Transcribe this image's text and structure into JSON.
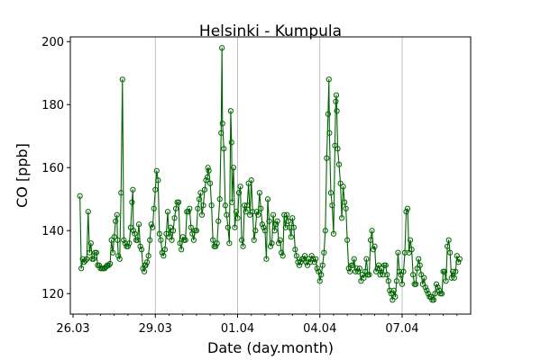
{
  "chart_data": {
    "type": "line",
    "title": "Helsinki - Kumpula",
    "xlabel": "Date (day.month)",
    "ylabel": "CO [ppb]",
    "x_unit": "days since 26.03 00:00",
    "xlim": [
      -0.1,
      14.5
    ],
    "ylim": [
      113.5,
      201.5
    ],
    "x_ticks": [
      {
        "value": 0,
        "label": "26.03"
      },
      {
        "value": 3,
        "label": "29.03"
      },
      {
        "value": 6,
        "label": "01.04"
      },
      {
        "value": 9,
        "label": "04.04"
      },
      {
        "value": 12,
        "label": "07.04"
      }
    ],
    "y_ticks": [
      120,
      140,
      160,
      180,
      200
    ],
    "vertical_gridlines_at": [
      3,
      6,
      9,
      12
    ],
    "colors": {
      "series": "#006400"
    },
    "series": [
      {
        "name": "CO",
        "marker": "hollow-circle",
        "points": [
          [
            0.25,
            151
          ],
          [
            0.3,
            128
          ],
          [
            0.35,
            131
          ],
          [
            0.4,
            130
          ],
          [
            0.45,
            130.5
          ],
          [
            0.5,
            131
          ],
          [
            0.55,
            146
          ],
          [
            0.6,
            133
          ],
          [
            0.65,
            136
          ],
          [
            0.7,
            131
          ],
          [
            0.75,
            131
          ],
          [
            0.8,
            133
          ],
          [
            0.85,
            133
          ],
          [
            0.9,
            129
          ],
          [
            0.95,
            129
          ],
          [
            1.0,
            128
          ],
          [
            1.05,
            128
          ],
          [
            1.1,
            128
          ],
          [
            1.15,
            128
          ],
          [
            1.2,
            128.5
          ],
          [
            1.25,
            129
          ],
          [
            1.3,
            129
          ],
          [
            1.35,
            129.5
          ],
          [
            1.4,
            137
          ],
          [
            1.45,
            133
          ],
          [
            1.5,
            138
          ],
          [
            1.55,
            143
          ],
          [
            1.6,
            145
          ],
          [
            1.62,
            137
          ],
          [
            1.65,
            132
          ],
          [
            1.7,
            131
          ],
          [
            1.75,
            152
          ],
          [
            1.8,
            188
          ],
          [
            1.85,
            137
          ],
          [
            1.9,
            136
          ],
          [
            1.95,
            135
          ],
          [
            2.0,
            135
          ],
          [
            2.05,
            136
          ],
          [
            2.1,
            141
          ],
          [
            2.15,
            149
          ],
          [
            2.18,
            153
          ],
          [
            2.2,
            140
          ],
          [
            2.25,
            139
          ],
          [
            2.3,
            137
          ],
          [
            2.35,
            137
          ],
          [
            2.4,
            142
          ],
          [
            2.45,
            135
          ],
          [
            2.5,
            134
          ],
          [
            2.55,
            128
          ],
          [
            2.6,
            127
          ],
          [
            2.62,
            129
          ],
          [
            2.65,
            129
          ],
          [
            2.7,
            130
          ],
          [
            2.75,
            132
          ],
          [
            2.8,
            137
          ],
          [
            2.85,
            142
          ],
          [
            2.9,
            141
          ],
          [
            2.95,
            147
          ],
          [
            3.0,
            153
          ],
          [
            3.05,
            159
          ],
          [
            3.1,
            156
          ],
          [
            3.15,
            139
          ],
          [
            3.2,
            137
          ],
          [
            3.25,
            133
          ],
          [
            3.3,
            132
          ],
          [
            3.35,
            134
          ],
          [
            3.4,
            139
          ],
          [
            3.45,
            146
          ],
          [
            3.5,
            138
          ],
          [
            3.55,
            141
          ],
          [
            3.6,
            137
          ],
          [
            3.65,
            140
          ],
          [
            3.7,
            144
          ],
          [
            3.75,
            147
          ],
          [
            3.8,
            149
          ],
          [
            3.85,
            149
          ],
          [
            3.9,
            136
          ],
          [
            3.95,
            134
          ],
          [
            4.0,
            138
          ],
          [
            4.05,
            137
          ],
          [
            4.1,
            137
          ],
          [
            4.15,
            146
          ],
          [
            4.2,
            146
          ],
          [
            4.25,
            147
          ],
          [
            4.3,
            141
          ],
          [
            4.35,
            139
          ],
          [
            4.4,
            137
          ],
          [
            4.45,
            140
          ],
          [
            4.5,
            140
          ],
          [
            4.55,
            147
          ],
          [
            4.6,
            150
          ],
          [
            4.65,
            152
          ],
          [
            4.7,
            145
          ],
          [
            4.75,
            148
          ],
          [
            4.8,
            153
          ],
          [
            4.85,
            156
          ],
          [
            4.9,
            157
          ],
          [
            4.92,
            160
          ],
          [
            4.95,
            159
          ],
          [
            5.0,
            155
          ],
          [
            5.05,
            148
          ],
          [
            5.1,
            137
          ],
          [
            5.15,
            135
          ],
          [
            5.2,
            135
          ],
          [
            5.25,
            136
          ],
          [
            5.3,
            143
          ],
          [
            5.35,
            150
          ],
          [
            5.4,
            171
          ],
          [
            5.43,
            198
          ],
          [
            5.45,
            174
          ],
          [
            5.5,
            166
          ],
          [
            5.55,
            148
          ],
          [
            5.6,
            145
          ],
          [
            5.65,
            141
          ],
          [
            5.7,
            136
          ],
          [
            5.75,
            178
          ],
          [
            5.78,
            168
          ],
          [
            5.8,
            149
          ],
          [
            5.85,
            160
          ],
          [
            5.9,
            141
          ],
          [
            5.95,
            146
          ],
          [
            6.0,
            144
          ],
          [
            6.05,
            152
          ],
          [
            6.1,
            154
          ],
          [
            6.15,
            137
          ],
          [
            6.2,
            135
          ],
          [
            6.25,
            148
          ],
          [
            6.3,
            146
          ],
          [
            6.35,
            148
          ],
          [
            6.4,
            155
          ],
          [
            6.45,
            145
          ],
          [
            6.5,
            156
          ],
          [
            6.55,
            146
          ],
          [
            6.6,
            137
          ],
          [
            6.65,
            140
          ],
          [
            6.7,
            146
          ],
          [
            6.75,
            145
          ],
          [
            6.8,
            152
          ],
          [
            6.85,
            147
          ],
          [
            6.9,
            142
          ],
          [
            6.95,
            141
          ],
          [
            7.0,
            140
          ],
          [
            7.05,
            131
          ],
          [
            7.1,
            150
          ],
          [
            7.15,
            143
          ],
          [
            7.2,
            135
          ],
          [
            7.25,
            136
          ],
          [
            7.3,
            145
          ],
          [
            7.35,
            140
          ],
          [
            7.4,
            142
          ],
          [
            7.45,
            143
          ],
          [
            7.5,
            136
          ],
          [
            7.55,
            137
          ],
          [
            7.6,
            133
          ],
          [
            7.65,
            132
          ],
          [
            7.7,
            145
          ],
          [
            7.75,
            141
          ],
          [
            7.8,
            145
          ],
          [
            7.85,
            143
          ],
          [
            7.9,
            141
          ],
          [
            7.95,
            138
          ],
          [
            8.0,
            144
          ],
          [
            8.05,
            141
          ],
          [
            8.1,
            134
          ],
          [
            8.15,
            132
          ],
          [
            8.2,
            130
          ],
          [
            8.25,
            129
          ],
          [
            8.3,
            130
          ],
          [
            8.35,
            131
          ],
          [
            8.4,
            131
          ],
          [
            8.45,
            132
          ],
          [
            8.5,
            130
          ],
          [
            8.55,
            129
          ],
          [
            8.6,
            131
          ],
          [
            8.65,
            130
          ],
          [
            8.7,
            132
          ],
          [
            8.75,
            131
          ],
          [
            8.8,
            130
          ],
          [
            8.85,
            131
          ],
          [
            8.9,
            128
          ],
          [
            8.95,
            127
          ],
          [
            9.0,
            124
          ],
          [
            9.05,
            126
          ],
          [
            9.1,
            129
          ],
          [
            9.15,
            133
          ],
          [
            9.2,
            140
          ],
          [
            9.25,
            163
          ],
          [
            9.3,
            177
          ],
          [
            9.33,
            188
          ],
          [
            9.35,
            171
          ],
          [
            9.4,
            152
          ],
          [
            9.45,
            148
          ],
          [
            9.5,
            139
          ],
          [
            9.55,
            167
          ],
          [
            9.58,
            181
          ],
          [
            9.6,
            183
          ],
          [
            9.62,
            178
          ],
          [
            9.65,
            166
          ],
          [
            9.7,
            161
          ],
          [
            9.75,
            155
          ],
          [
            9.8,
            144
          ],
          [
            9.85,
            154
          ],
          [
            9.9,
            149
          ],
          [
            9.95,
            147
          ],
          [
            10.0,
            137
          ],
          [
            10.05,
            128
          ],
          [
            10.1,
            127
          ],
          [
            10.15,
            129
          ],
          [
            10.2,
            129
          ],
          [
            10.25,
            131
          ],
          [
            10.3,
            127
          ],
          [
            10.35,
            128
          ],
          [
            10.4,
            127
          ],
          [
            10.45,
            128
          ],
          [
            10.5,
            124
          ],
          [
            10.55,
            126
          ],
          [
            10.6,
            125
          ],
          [
            10.65,
            127
          ],
          [
            10.7,
            131
          ],
          [
            10.75,
            126
          ],
          [
            10.8,
            126
          ],
          [
            10.85,
            137
          ],
          [
            10.9,
            140
          ],
          [
            10.95,
            134
          ],
          [
            11.0,
            135
          ],
          [
            11.05,
            127
          ],
          [
            11.1,
            128
          ],
          [
            11.15,
            129
          ],
          [
            11.2,
            126
          ],
          [
            11.25,
            128
          ],
          [
            11.3,
            126
          ],
          [
            11.35,
            129
          ],
          [
            11.4,
            129
          ],
          [
            11.45,
            126
          ],
          [
            11.5,
            124
          ],
          [
            11.55,
            121
          ],
          [
            11.6,
            120
          ],
          [
            11.65,
            118
          ],
          [
            11.7,
            121
          ],
          [
            11.75,
            119
          ],
          [
            11.8,
            124
          ],
          [
            11.85,
            133
          ],
          [
            11.9,
            127
          ],
          [
            11.95,
            126
          ],
          [
            12.0,
            123
          ],
          [
            12.05,
            127
          ],
          [
            12.1,
            133
          ],
          [
            12.15,
            146
          ],
          [
            12.2,
            147
          ],
          [
            12.25,
            133
          ],
          [
            12.3,
            137
          ],
          [
            12.35,
            134
          ],
          [
            12.4,
            126
          ],
          [
            12.45,
            123
          ],
          [
            12.5,
            123
          ],
          [
            12.55,
            128
          ],
          [
            12.6,
            131
          ],
          [
            12.65,
            129
          ],
          [
            12.7,
            126
          ],
          [
            12.75,
            123
          ],
          [
            12.8,
            125
          ],
          [
            12.85,
            122
          ],
          [
            12.9,
            121
          ],
          [
            12.95,
            120
          ],
          [
            13.0,
            119
          ],
          [
            13.05,
            119
          ],
          [
            13.1,
            118
          ],
          [
            13.15,
            118
          ],
          [
            13.2,
            120
          ],
          [
            13.25,
            123
          ],
          [
            13.3,
            122
          ],
          [
            13.35,
            121
          ],
          [
            13.4,
            120
          ],
          [
            13.45,
            120
          ],
          [
            13.5,
            127
          ],
          [
            13.55,
            127
          ],
          [
            13.6,
            124
          ],
          [
            13.65,
            135
          ],
          [
            13.7,
            137
          ],
          [
            13.75,
            133
          ],
          [
            13.8,
            125
          ],
          [
            13.85,
            127
          ],
          [
            13.9,
            125
          ],
          [
            13.95,
            127
          ],
          [
            14.0,
            132
          ],
          [
            14.05,
            130
          ],
          [
            14.1,
            131
          ]
        ]
      }
    ]
  }
}
